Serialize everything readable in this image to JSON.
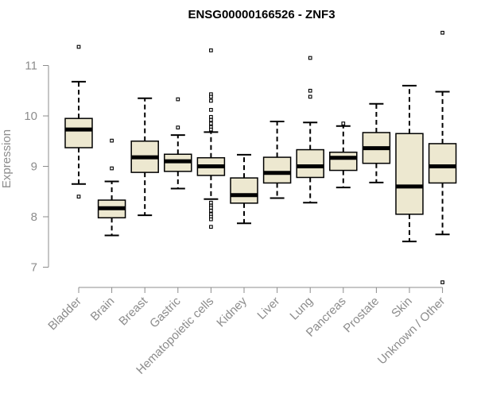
{
  "chart_data": {
    "type": "boxplot",
    "title": "ENSG00000166526 - ZNF3",
    "xlabel": "",
    "ylabel": "Expression",
    "ylim": [
      6.6,
      11.7
    ],
    "yticks": [
      7,
      8,
      9,
      10,
      11
    ],
    "grid": false,
    "colors": {
      "box_fill": "#ede8d0",
      "stroke": "#000000",
      "axis": "#8c8c8c"
    },
    "categories": [
      "Bladder",
      "Brain",
      "Breast",
      "Gastric",
      "Hematopoietic cells",
      "Kidney",
      "Liver",
      "Lung",
      "Pancreas",
      "Prostate",
      "Skin",
      "Unknown / Other"
    ],
    "boxes": [
      {
        "whisker_low": 8.65,
        "q1": 9.37,
        "median": 9.73,
        "q3": 9.95,
        "whisker_high": 10.68,
        "outliers": [
          11.37,
          8.4
        ]
      },
      {
        "whisker_low": 7.63,
        "q1": 7.98,
        "median": 8.17,
        "q3": 8.33,
        "whisker_high": 8.7,
        "outliers": [
          9.51,
          8.96
        ]
      },
      {
        "whisker_low": 8.03,
        "q1": 8.88,
        "median": 9.18,
        "q3": 9.5,
        "whisker_high": 10.35,
        "outliers": []
      },
      {
        "whisker_low": 8.56,
        "q1": 8.9,
        "median": 9.1,
        "q3": 9.24,
        "whisker_high": 9.62,
        "outliers": [
          10.33,
          9.77
        ]
      },
      {
        "whisker_low": 8.35,
        "q1": 8.82,
        "median": 9.0,
        "q3": 9.17,
        "whisker_high": 9.68,
        "outliers": [
          11.3,
          10.43,
          10.38,
          10.3,
          10.12,
          9.98,
          9.92,
          9.85,
          9.78,
          9.73,
          8.28,
          8.22,
          8.18,
          8.12,
          8.05,
          8.0,
          7.95,
          7.8
        ]
      },
      {
        "whisker_low": 7.87,
        "q1": 8.27,
        "median": 8.43,
        "q3": 8.77,
        "whisker_high": 9.23,
        "outliers": []
      },
      {
        "whisker_low": 8.37,
        "q1": 8.67,
        "median": 8.87,
        "q3": 9.18,
        "whisker_high": 9.89,
        "outliers": []
      },
      {
        "whisker_low": 8.28,
        "q1": 8.78,
        "median": 9.0,
        "q3": 9.33,
        "whisker_high": 9.87,
        "outliers": [
          11.15,
          10.5,
          10.38
        ]
      },
      {
        "whisker_low": 8.58,
        "q1": 8.92,
        "median": 9.17,
        "q3": 9.28,
        "whisker_high": 9.8,
        "outliers": [
          9.85
        ]
      },
      {
        "whisker_low": 8.68,
        "q1": 9.06,
        "median": 9.36,
        "q3": 9.67,
        "whisker_high": 10.24,
        "outliers": []
      },
      {
        "whisker_low": 7.51,
        "q1": 8.05,
        "median": 8.6,
        "q3": 9.65,
        "whisker_high": 10.6,
        "outliers": []
      },
      {
        "whisker_low": 7.65,
        "q1": 8.67,
        "median": 9.0,
        "q3": 9.45,
        "whisker_high": 10.48,
        "outliers": [
          11.65,
          6.7
        ]
      }
    ]
  }
}
